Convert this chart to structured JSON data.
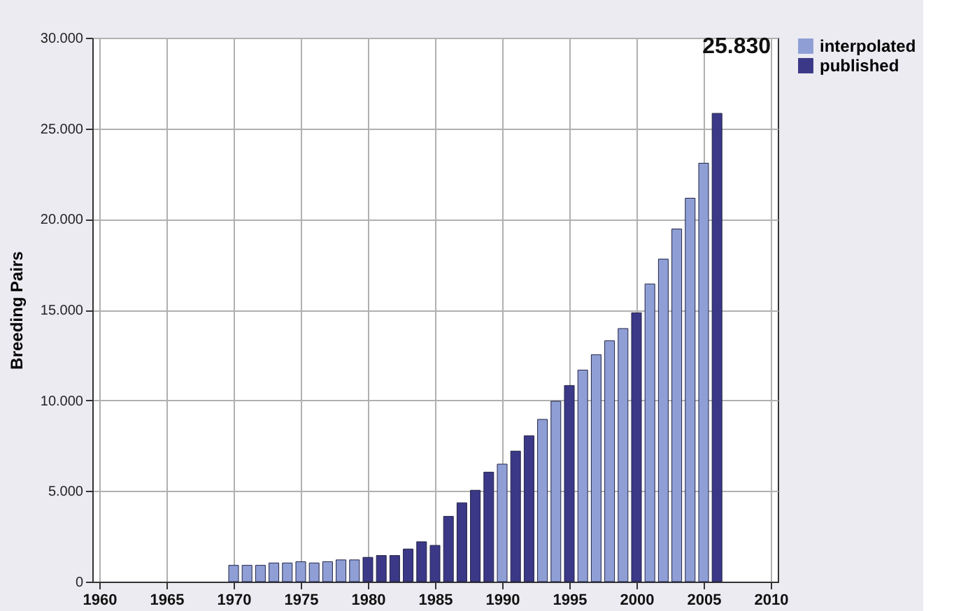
{
  "chart_data": {
    "type": "bar",
    "ylabel": "Breeding Pairs",
    "x": [
      1970,
      1971,
      1972,
      1973,
      1974,
      1975,
      1976,
      1977,
      1978,
      1979,
      1980,
      1981,
      1982,
      1983,
      1984,
      1985,
      1986,
      1987,
      1988,
      1989,
      1990,
      1991,
      1992,
      1993,
      1994,
      1995,
      1996,
      1997,
      1998,
      1999,
      2000,
      2001,
      2002,
      2003,
      2004,
      2005,
      2006
    ],
    "series": [
      {
        "name": "interpolated",
        "color": "#8f9fd6",
        "values": [
          900,
          900,
          900,
          1030,
          1030,
          1100,
          1030,
          1100,
          1200,
          1200,
          null,
          null,
          null,
          null,
          null,
          null,
          null,
          null,
          null,
          null,
          6480,
          null,
          null,
          8950,
          9950,
          null,
          11670,
          12520,
          13290,
          13960,
          null,
          16420,
          17790,
          19450,
          21150,
          23080,
          null
        ]
      },
      {
        "name": "published",
        "color": "#3b3888",
        "values": [
          null,
          null,
          null,
          null,
          null,
          null,
          null,
          null,
          null,
          null,
          1340,
          1440,
          1440,
          1800,
          2200,
          2000,
          3600,
          4350,
          5040,
          6040,
          null,
          7200,
          8050,
          null,
          null,
          10820,
          null,
          null,
          null,
          null,
          14830,
          null,
          null,
          null,
          null,
          null,
          25830
        ]
      }
    ],
    "xlim": [
      1960,
      2010
    ],
    "xticks": [
      1960,
      1965,
      1970,
      1975,
      1980,
      1985,
      1990,
      1995,
      2000,
      2005,
      2010
    ],
    "ylim": [
      0,
      30000
    ],
    "yticks": [
      {
        "value": 0,
        "label": "0"
      },
      {
        "value": 5000,
        "label": "5.000"
      },
      {
        "value": 10000,
        "label": "10.000"
      },
      {
        "value": 15000,
        "label": "15.000"
      },
      {
        "value": 20000,
        "label": "20.000"
      },
      {
        "value": 25000,
        "label": "25.000"
      },
      {
        "value": 30000,
        "label": "30.000"
      }
    ],
    "annotations": [
      {
        "text": "25.830",
        "x": 2006,
        "y": 25830
      }
    ],
    "grid": true,
    "legend": "right"
  }
}
